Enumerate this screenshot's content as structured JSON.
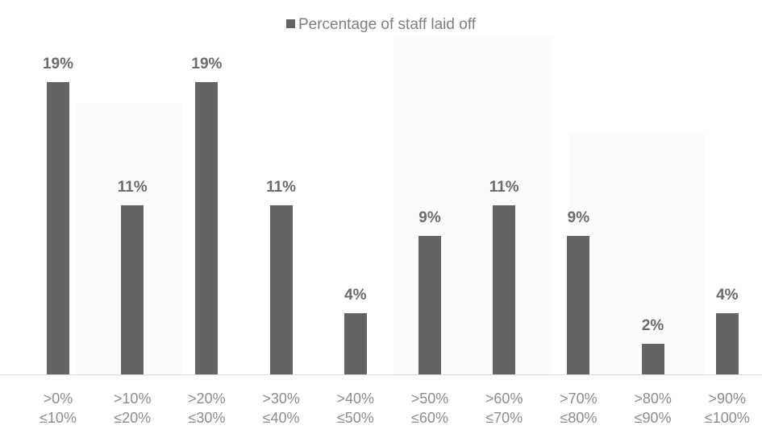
{
  "chart_data": {
    "type": "bar",
    "legend": [
      {
        "label": "Percentage of staff laid off",
        "color": "#636363"
      }
    ],
    "legend_position": "top-center",
    "categories": [
      [
        ">0%",
        "≤10%"
      ],
      [
        ">10%",
        "≤20%"
      ],
      [
        ">20%",
        "≤30%"
      ],
      [
        ">30%",
        "≤40%"
      ],
      [
        ">40%",
        "≤50%"
      ],
      [
        ">50%",
        "≤60%"
      ],
      [
        ">60%",
        "≤70%"
      ],
      [
        ">70%",
        "≤80%"
      ],
      [
        ">80%",
        "≤90%"
      ],
      [
        ">90%",
        "≤100%"
      ]
    ],
    "series": [
      {
        "name": "Percentage of staff laid off",
        "color": "#636363",
        "values": [
          19,
          11,
          19,
          11,
          4,
          9,
          11,
          9,
          2,
          4
        ],
        "data_labels": [
          "19%",
          "11%",
          "19%",
          "11%",
          "4%",
          "9%",
          "11%",
          "9%",
          "2%",
          "4%"
        ]
      }
    ],
    "ylim": [
      0,
      20
    ],
    "grid": false,
    "y_axis_visible": false
  }
}
